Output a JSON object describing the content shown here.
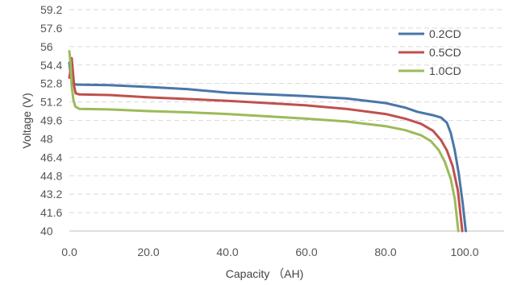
{
  "chart_data": {
    "type": "line",
    "xlabel": "Capacity （AH)",
    "ylabel": "Voltage (V)",
    "xlim": [
      0,
      110
    ],
    "ylim": [
      40,
      59.2
    ],
    "x_ticks": [
      "0.0",
      "20.0",
      "40.0",
      "60.0",
      "80.0",
      "100.0"
    ],
    "y_ticks": [
      "40",
      "41.6",
      "43.2",
      "44.8",
      "46.4",
      "48",
      "49.6",
      "51.2",
      "52.8",
      "54.4",
      "56",
      "57.6",
      "59.2"
    ],
    "grid": true,
    "legend_position": "top-right",
    "series": [
      {
        "name": "0.2CD",
        "color": "#4a76a8",
        "points": [
          [
            0,
            54.6
          ],
          [
            0.3,
            53.6
          ],
          [
            0.6,
            53.0
          ],
          [
            1.0,
            52.75
          ],
          [
            2,
            52.7
          ],
          [
            10,
            52.65
          ],
          [
            20,
            52.5
          ],
          [
            30,
            52.3
          ],
          [
            40,
            52.0
          ],
          [
            50,
            51.85
          ],
          [
            60,
            51.7
          ],
          [
            70,
            51.5
          ],
          [
            80,
            51.1
          ],
          [
            85,
            50.7
          ],
          [
            88,
            50.35
          ],
          [
            92,
            50.05
          ],
          [
            94,
            49.85
          ],
          [
            95.5,
            49.4
          ],
          [
            96.5,
            48.5
          ],
          [
            97.5,
            47.0
          ],
          [
            98.5,
            45.0
          ],
          [
            99.5,
            42.5
          ],
          [
            100.3,
            40.0
          ]
        ]
      },
      {
        "name": "0.5CD",
        "color": "#c0504d",
        "points": [
          [
            0,
            53.3
          ],
          [
            0.3,
            54.0
          ],
          [
            0.6,
            55.0
          ],
          [
            0.9,
            53.8
          ],
          [
            1.2,
            52.6
          ],
          [
            1.6,
            51.95
          ],
          [
            2.5,
            51.85
          ],
          [
            10,
            51.8
          ],
          [
            20,
            51.6
          ],
          [
            30,
            51.45
          ],
          [
            40,
            51.3
          ],
          [
            50,
            51.1
          ],
          [
            60,
            50.9
          ],
          [
            70,
            50.6
          ],
          [
            80,
            50.15
          ],
          [
            85,
            49.75
          ],
          [
            89,
            49.3
          ],
          [
            92,
            48.7
          ],
          [
            94,
            47.9
          ],
          [
            95.5,
            47.0
          ],
          [
            97,
            45.6
          ],
          [
            98.3,
            43.5
          ],
          [
            99.4,
            40.0
          ]
        ]
      },
      {
        "name": "1.0CD",
        "color": "#9bbb59",
        "points": [
          [
            0,
            55.6
          ],
          [
            0.3,
            54.5
          ],
          [
            0.6,
            52.6
          ],
          [
            1.0,
            51.4
          ],
          [
            1.5,
            50.8
          ],
          [
            2.5,
            50.6
          ],
          [
            10,
            50.55
          ],
          [
            20,
            50.4
          ],
          [
            30,
            50.3
          ],
          [
            40,
            50.15
          ],
          [
            50,
            49.95
          ],
          [
            60,
            49.75
          ],
          [
            70,
            49.5
          ],
          [
            80,
            49.1
          ],
          [
            85,
            48.75
          ],
          [
            89,
            48.3
          ],
          [
            91.5,
            47.8
          ],
          [
            93.5,
            47.0
          ],
          [
            95,
            46.0
          ],
          [
            96.5,
            44.5
          ],
          [
            97.5,
            42.8
          ],
          [
            98.4,
            40.0
          ]
        ]
      }
    ]
  }
}
